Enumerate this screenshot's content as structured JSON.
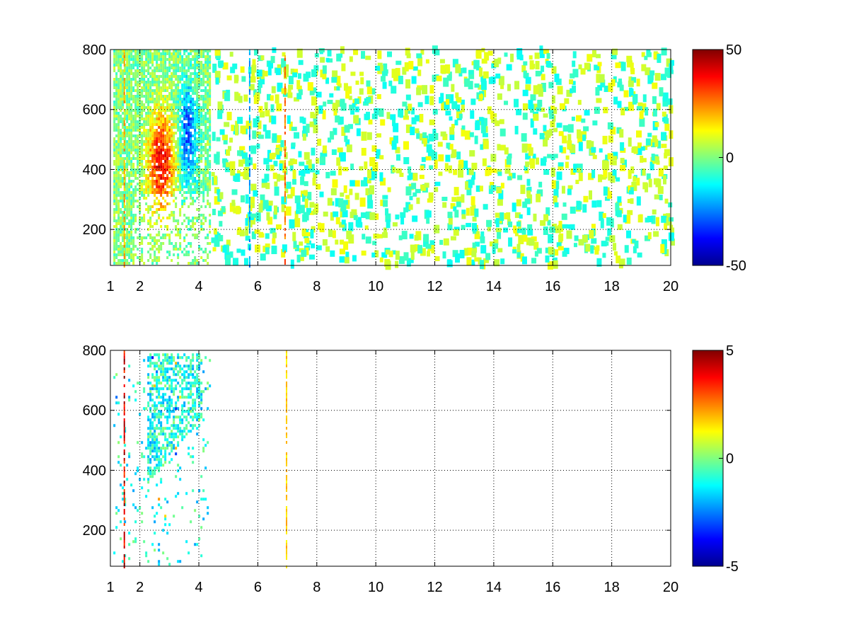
{
  "chart_data": [
    {
      "type": "heatmap",
      "title": "",
      "xlabel": "",
      "ylabel": "",
      "xlim": [
        1,
        20
      ],
      "ylim": [
        80,
        800
      ],
      "xticks": [
        1,
        2,
        4,
        6,
        8,
        10,
        12,
        14,
        16,
        18,
        20
      ],
      "yticks": [
        200,
        400,
        600,
        800
      ],
      "grid": true,
      "colormap": "jet",
      "clim": [
        -50,
        50
      ],
      "colorbar_ticks": [
        -50,
        0,
        50
      ],
      "dense_region": {
        "x_range": [
          1.1,
          4.4
        ],
        "y_range": [
          90,
          800
        ],
        "positive_peak": {
          "x": 2.7,
          "y": 430,
          "value": 40
        },
        "negative_peak": {
          "x": 3.6,
          "y": 520,
          "value": -30
        }
      },
      "sparse_values_range": [
        -12,
        12
      ],
      "notable_columns": [
        {
          "x": 1.45,
          "value": 25
        },
        {
          "x": 5.7,
          "value": -25
        },
        {
          "x": 6.9,
          "value": 30
        }
      ]
    },
    {
      "type": "heatmap",
      "title": "",
      "xlabel": "",
      "ylabel": "",
      "xlim": [
        1,
        20
      ],
      "ylim": [
        80,
        800
      ],
      "xticks": [
        1,
        2,
        4,
        6,
        8,
        10,
        12,
        14,
        16,
        18,
        20
      ],
      "yticks": [
        200,
        400,
        600,
        800
      ],
      "grid": true,
      "colormap": "jet",
      "clim": [
        -5,
        5
      ],
      "colorbar_ticks": [
        -5,
        0,
        5
      ],
      "dense_region": {
        "x_range": [
          1.1,
          4.4
        ],
        "y_range": [
          90,
          790
        ],
        "typical_value": -1
      },
      "notable_columns": [
        {
          "x": 1.45,
          "value": 5
        },
        {
          "x": 6.95,
          "value": 2
        }
      ]
    }
  ],
  "colors": {
    "background": "#ffffff",
    "axis": "#000000",
    "grid": "#000000"
  }
}
